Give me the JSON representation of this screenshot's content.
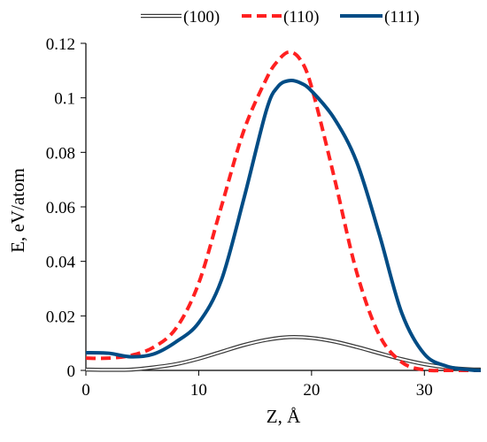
{
  "chart_data": {
    "type": "line",
    "title": "",
    "xlabel": "Z, Å",
    "ylabel": "E, eV/atom",
    "xlim": [
      0,
      35
    ],
    "ylim": [
      0,
      0.12
    ],
    "x_ticks": [
      0,
      10,
      20,
      30
    ],
    "x_tick_labels": [
      "0",
      "10",
      "20",
      "30"
    ],
    "y_ticks": [
      0,
      0.02,
      0.04,
      0.06,
      0.08,
      0.1,
      0.12
    ],
    "y_tick_labels": [
      "0",
      "0.02",
      "0.04",
      "0.06",
      "0.08",
      "0.1",
      "0.12"
    ],
    "grid": false,
    "legend_position": "top",
    "series": [
      {
        "name": "(100)",
        "style": "double-line",
        "color": "#3a3a3a",
        "x": [
          0,
          2,
          4,
          6,
          8,
          10,
          12,
          14,
          16,
          18,
          20,
          22,
          24,
          26,
          28,
          30,
          32,
          34,
          35
        ],
        "y": [
          0.0003,
          0.0002,
          0.0003,
          0.0011,
          0.0023,
          0.0043,
          0.0068,
          0.0093,
          0.0112,
          0.0122,
          0.0119,
          0.0106,
          0.0086,
          0.0063,
          0.0041,
          0.0023,
          0.0011,
          0.0004,
          0.0003
        ]
      },
      {
        "name": "(110)",
        "style": "dashed",
        "color": "#ff2020",
        "x": [
          0,
          2,
          4,
          6,
          8,
          10,
          12,
          14,
          16,
          17,
          18,
          19,
          20,
          22,
          24,
          26,
          28,
          30,
          32,
          34,
          35
        ],
        "y": [
          0.0045,
          0.0045,
          0.0055,
          0.0085,
          0.0155,
          0.032,
          0.06,
          0.088,
          0.107,
          0.1135,
          0.1168,
          0.114,
          0.104,
          0.071,
          0.036,
          0.013,
          0.003,
          0.0002,
          0,
          0,
          0
        ]
      },
      {
        "name": "(111)",
        "style": "solid",
        "color": "#004c85",
        "x": [
          0,
          2,
          4,
          6,
          8,
          10,
          12,
          14,
          16,
          17,
          18,
          19,
          20,
          22,
          24,
          26,
          28,
          30,
          32,
          34,
          35
        ],
        "y": [
          0.0065,
          0.0063,
          0.005,
          0.006,
          0.0105,
          0.0175,
          0.033,
          0.063,
          0.0955,
          0.104,
          0.1063,
          0.1055,
          0.1025,
          0.0925,
          0.0765,
          0.05,
          0.021,
          0.006,
          0.0015,
          0.0002,
          0
        ]
      }
    ]
  }
}
